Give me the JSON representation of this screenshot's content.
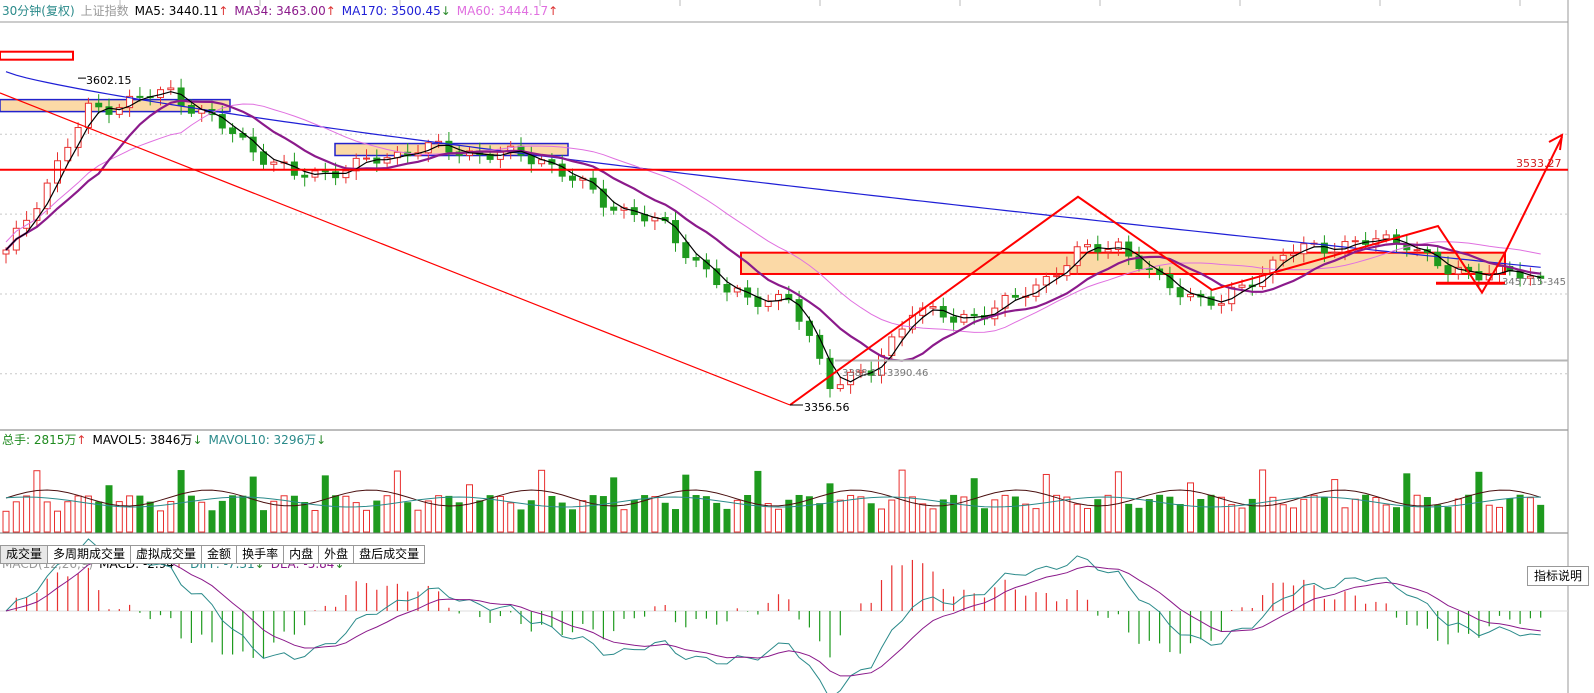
{
  "header": {
    "period": "30分钟(复权)",
    "index_name": "上证指数",
    "ma": [
      {
        "label": "MA5: 3440.11",
        "arrow": "↑",
        "color": "#000000"
      },
      {
        "label": "MA34: 3463.00",
        "arrow": "↑",
        "color": "#8b1a8b"
      },
      {
        "label": "MA170: 3500.45",
        "arrow": "↓",
        "color": "#1f1fd6"
      },
      {
        "label": "MA60: 3444.17",
        "arrow": "↑",
        "color": "#e070e0"
      }
    ]
  },
  "volume_header": {
    "total": "总手: 2815万",
    "total_arrow": "↑",
    "mavol5": "MAVOL5: 3846万",
    "mavol5_arrow": "↓",
    "mavol10": "MAVOL10: 3296万",
    "mavol10_arrow": "↓"
  },
  "macd_header": {
    "name": "MACD(12,26,9)",
    "macd": "MACD: -2.94",
    "macd_arrow": "↑",
    "diff": "DIFF: -7.31",
    "diff_arrow": "↓",
    "dea": "DEA: -5.84",
    "dea_arrow": "↓"
  },
  "tabs": [
    "成交量",
    "多周期成交量",
    "虚拟成交量",
    "金额",
    "换手率",
    "内盘",
    "外盘",
    "盘后成交量"
  ],
  "help_button": "指标说明",
  "annotations": {
    "high": "3602.15",
    "low": "3356.56",
    "gap": "3388.11-3390.46",
    "resistance": "3533.27",
    "right_range": "3457.15-345"
  },
  "colors": {
    "up": "#e8302f",
    "down": "#1e9a1e",
    "ma5": "#000000",
    "ma34": "#8b1a8b",
    "ma170": "#1f1fd6",
    "ma60": "#e070e0",
    "drawing": "#ff0000",
    "zone_fill": "#fbd9a6",
    "volume_up": "#e8302f",
    "volume_down": "#1e9a1e"
  },
  "chart_data": {
    "type": "candlestick",
    "candles": {
      "count": 150,
      "start": 3470,
      "end": 3448,
      "high": 3602.15,
      "low": 3356.56
    },
    "lines": [
      {
        "name": "MA5"
      },
      {
        "name": "MA34"
      },
      {
        "name": "MA170"
      },
      {
        "name": "MA60"
      }
    ]
  }
}
